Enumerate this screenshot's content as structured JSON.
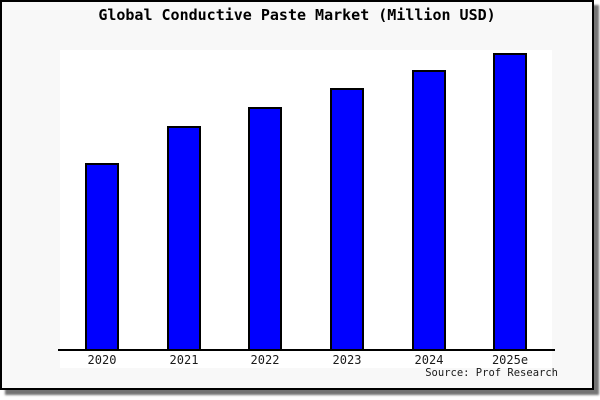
{
  "window": {
    "title": "Global Conductive Paste Market (Million USD)",
    "source": "Source: Prof Research"
  },
  "colors": {
    "background": "#f8f8f8",
    "plot_background": "#ffffff",
    "bar_fill": "#0000ff",
    "bar_border": "#000000",
    "axis_line": "#000000",
    "frame_border": "#000000"
  },
  "chart_data": {
    "type": "bar",
    "title": "Global Conductive Paste Market (Million USD)",
    "categories": [
      "2020",
      "2021",
      "2022",
      "2023",
      "2024",
      "2025e"
    ],
    "values": [
      63.1,
      75.5,
      81.9,
      88.3,
      94.3,
      100
    ],
    "value_scale_note": "no y-axis shown; values are relative heights with tallest bar (2025e) = 100",
    "xlabel": "",
    "ylabel": "",
    "ylim": [
      0,
      101
    ],
    "grid": false,
    "legend": "none",
    "source": "Source: Prof Research"
  }
}
